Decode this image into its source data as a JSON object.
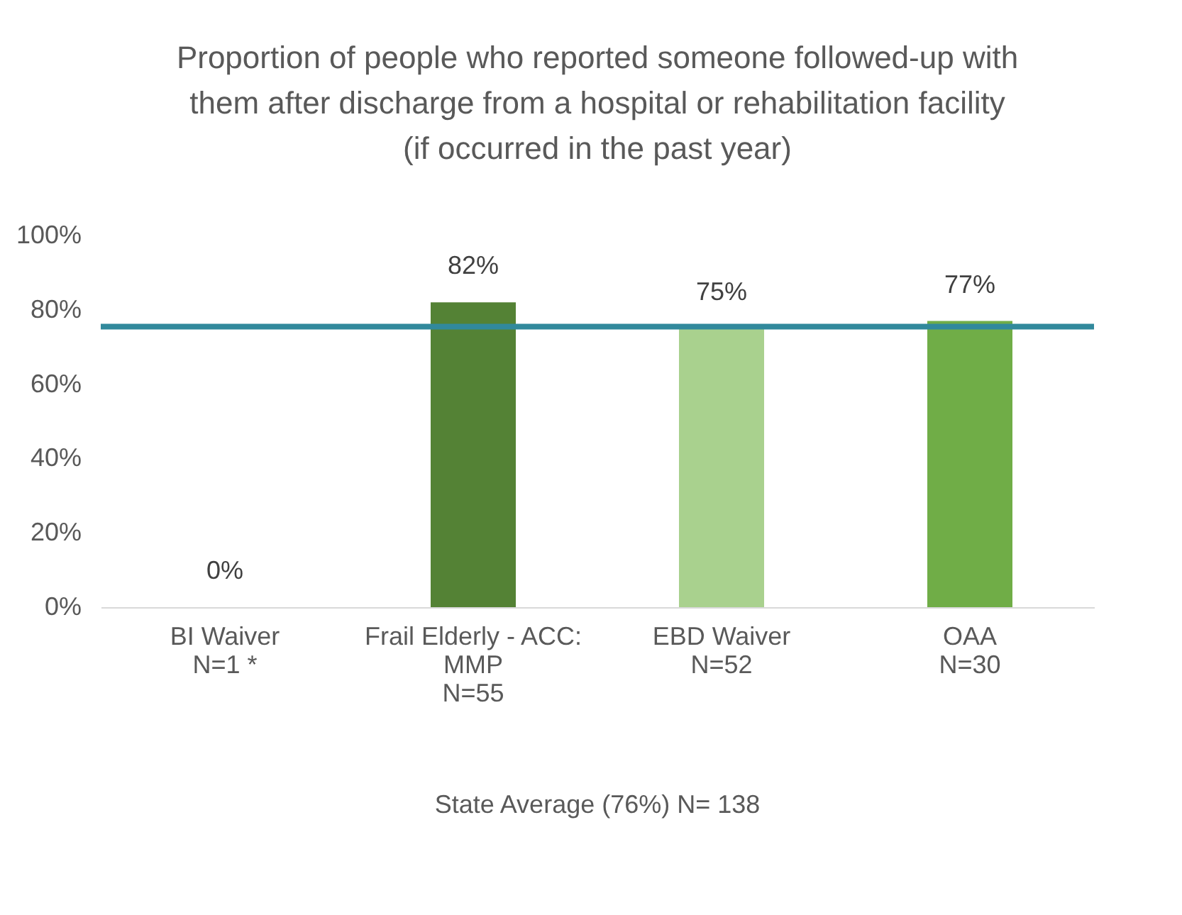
{
  "chart_data": {
    "type": "bar",
    "title": "Proportion of people who reported someone followed-up with\nthem after discharge from a hospital or rehabilitation facility\n(if occurred in the past year)",
    "categories": [
      "BI Waiver\nN=1 *",
      "Frail Elderly - ACC:\nMMP\nN=55",
      "EBD Waiver\nN=52",
      "OAA\nN=30"
    ],
    "values": [
      0,
      82,
      75,
      77
    ],
    "colors": [
      "#375623",
      "#548235",
      "#a9d18e",
      "#70ad47"
    ],
    "value_labels": [
      "0%",
      "82%",
      "75%",
      "77%"
    ],
    "ylim": [
      0,
      100
    ],
    "yticks": [
      {
        "value": 0,
        "label": "0%"
      },
      {
        "value": 20,
        "label": "20%"
      },
      {
        "value": 40,
        "label": "40%"
      },
      {
        "value": 60,
        "label": "60%"
      },
      {
        "value": 80,
        "label": "80%"
      },
      {
        "value": 100,
        "label": "100%"
      }
    ],
    "ref_lines": [
      {
        "axis": "y",
        "value": 75.5,
        "color": "#31899c"
      }
    ],
    "annotations": [
      "State Average (76%) N= 138"
    ],
    "grid": false
  }
}
